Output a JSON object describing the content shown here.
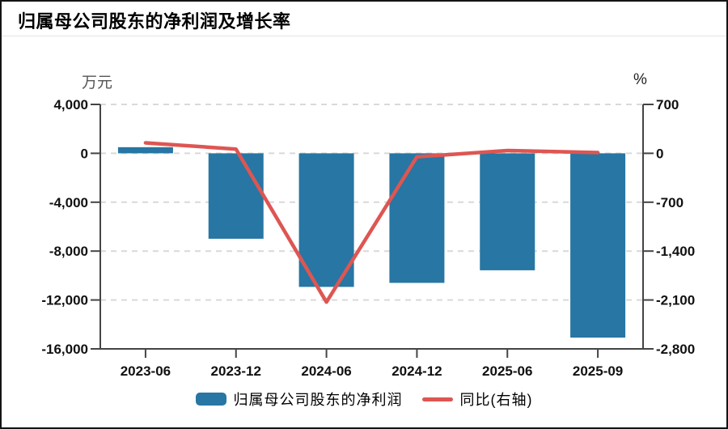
{
  "page": {
    "title": "归属母公司股东的净利润及增长率"
  },
  "chart_data": {
    "type": "bar",
    "title": "归属母公司股东的净利润及增长率",
    "categories": [
      "2023-06",
      "2023-12",
      "2024-06",
      "2024-12",
      "2025-06",
      "2025-09"
    ],
    "series": [
      {
        "name": "归属母公司股东的净利润",
        "type": "bar",
        "axis": "left",
        "unit": "万元",
        "color": "#2776A3",
        "values": [
          500,
          -6990,
          -10930,
          -10600,
          -9570,
          -15080
        ]
      },
      {
        "name": "同比(右轴)",
        "type": "line",
        "axis": "right",
        "unit": "%",
        "color": "#DD5652",
        "values": [
          150,
          60,
          -2130,
          -50,
          40,
          10
        ]
      }
    ],
    "left_axis": {
      "label": "万元",
      "range": [
        4000,
        -16000
      ],
      "ticks": [
        4000,
        0,
        -4000,
        -8000,
        -12000,
        -16000
      ],
      "tick_labels": [
        "4,000",
        "0",
        "-4,000",
        "-8,000",
        "-12,000",
        "-16,000"
      ]
    },
    "right_axis": {
      "label": "%",
      "range": [
        700,
        -2800
      ],
      "ticks": [
        700,
        0,
        -700,
        -1400,
        -2100,
        -2800
      ],
      "tick_labels": [
        "700",
        "0",
        "-700",
        "-1,400",
        "-2,100",
        "-2,800"
      ]
    },
    "grid": "horizontal-dashed",
    "legend_position": "bottom-center"
  }
}
